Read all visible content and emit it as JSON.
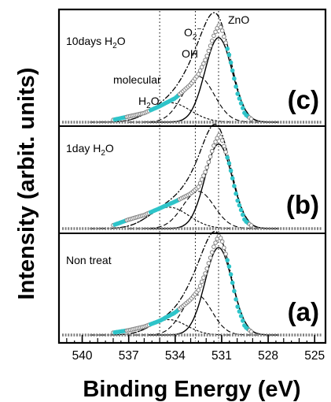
{
  "chart_data": {
    "type": "line",
    "title": "",
    "xlabel": "Binding Energy (eV)",
    "ylabel": "Intensity (arbit. units)",
    "xlim": [
      541.5,
      524.3
    ],
    "x_reversed": true,
    "xticks": [
      540,
      537,
      534,
      531,
      528,
      525
    ],
    "grid": false,
    "peak_markers_eV": [
      535.0,
      532.7,
      531.2
    ],
    "panels": [
      {
        "label": "(c)",
        "sample_text": "10days H",
        "sample_sub": "2",
        "sample_tail": "O",
        "components": [
          {
            "center": 531.2,
            "height": 0.74,
            "width": 1.3
          },
          {
            "center": 532.5,
            "height": 0.4,
            "width": 1.5
          },
          {
            "center": 534.3,
            "height": 0.17,
            "width": 1.9
          }
        ],
        "series": [
          {
            "name": "",
            "x": [
              538.0,
              537.0,
              536.0,
              535.0,
              534.0,
              533.0,
              532.5,
              532.0,
              531.5,
              531.2,
              531.0,
              530.5,
              530.0,
              529.5,
              529.0
            ],
            "y": [
              0.02,
              0.05,
              0.08,
              0.14,
              0.21,
              0.33,
              0.42,
              0.56,
              0.76,
              0.85,
              0.82,
              0.58,
              0.26,
              0.07,
              0.02
            ]
          }
        ]
      },
      {
        "label": "(b)",
        "sample_text": "1day H",
        "sample_sub": "2",
        "sample_tail": "O",
        "components": [
          {
            "center": 531.2,
            "height": 0.75,
            "width": 1.3
          },
          {
            "center": 532.5,
            "height": 0.33,
            "width": 1.5
          },
          {
            "center": 534.4,
            "height": 0.19,
            "width": 1.9
          }
        ],
        "series": [
          {
            "name": "",
            "x": [
              538.0,
              537.0,
              536.0,
              535.0,
              534.0,
              533.0,
              532.5,
              532.0,
              531.5,
              531.2,
              531.0,
              530.5,
              530.0,
              529.5,
              529.0
            ],
            "y": [
              0.03,
              0.08,
              0.12,
              0.18,
              0.24,
              0.31,
              0.37,
              0.52,
              0.74,
              0.83,
              0.8,
              0.57,
              0.26,
              0.07,
              0.02
            ]
          }
        ]
      },
      {
        "label": "(a)",
        "sample_text": "Non treat",
        "sample_sub": "",
        "sample_tail": "",
        "components": [
          {
            "center": 531.2,
            "height": 0.74,
            "width": 1.3
          },
          {
            "center": 532.6,
            "height": 0.34,
            "width": 1.4
          },
          {
            "center": 534.4,
            "height": 0.13,
            "width": 1.7
          }
        ],
        "series": [
          {
            "name": "",
            "x": [
              538.0,
              537.0,
              536.0,
              535.0,
              534.0,
              533.0,
              532.5,
              532.0,
              531.5,
              531.2,
              531.0,
              530.5,
              530.0,
              529.5,
              529.0
            ],
            "y": [
              0.02,
              0.04,
              0.07,
              0.12,
              0.19,
              0.3,
              0.38,
              0.54,
              0.75,
              0.84,
              0.81,
              0.57,
              0.25,
              0.07,
              0.02
            ]
          }
        ]
      }
    ],
    "annotations": {
      "zno": "ZnO",
      "o2_base": "O",
      "o2_sub": "2",
      "o2_sup": "−",
      "oh": "OH",
      "molecular": "molecular",
      "h2o_base": "H",
      "h2o_sub": "2",
      "h2o_tail": "O"
    }
  },
  "colors": {
    "data_points": "#7f7f7f",
    "data_point_fill": "#ffffff",
    "highlight_points": "#2ec4c9",
    "fit_lines": "#000000",
    "background": "#ffffff"
  }
}
